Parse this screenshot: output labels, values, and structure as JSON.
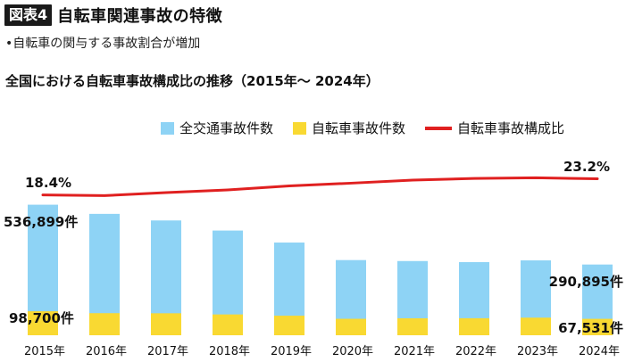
{
  "header": {
    "badge": "図表4",
    "title": "自転車関連事故の特徴",
    "bullet": "•自転車の関与する事故割合が増加"
  },
  "chart_data": {
    "type": "bar",
    "title": "全国における自転車事故構成比の推移（2015年〜 2024年）",
    "categories": [
      "2015年",
      "2016年",
      "2017年",
      "2018年",
      "2019年",
      "2020年",
      "2021年",
      "2022年",
      "2023年",
      "2024年"
    ],
    "series": [
      {
        "name": "全交通事故件数",
        "type": "bar",
        "color": "#8ed3f5",
        "values": [
          536899,
          499201,
          472165,
          430601,
          381237,
          309178,
          305196,
          300839,
          307930,
          290895
        ]
      },
      {
        "name": "自転車事故件数",
        "type": "bar",
        "color": "#f9d932",
        "values": [
          98700,
          90836,
          90407,
          85641,
          80473,
          67673,
          69694,
          69985,
          72339,
          67531
        ]
      },
      {
        "name": "自転車事故構成比",
        "type": "line",
        "color": "#e02020",
        "unit": "%",
        "values": [
          18.4,
          18.2,
          19.1,
          19.9,
          21.1,
          21.9,
          22.8,
          23.3,
          23.5,
          23.2
        ]
      }
    ],
    "data_labels": {
      "first_total": "536,899件",
      "first_bicycle": "98,700件",
      "first_ratio": "18.4%",
      "last_total": "290,895件",
      "last_bicycle": "67,531件",
      "last_ratio": "23.2%"
    },
    "bar_ylim": [
      0,
      600000
    ],
    "ratio_ylim": [
      0,
      26
    ],
    "legend_position": "top",
    "grid": false
  }
}
